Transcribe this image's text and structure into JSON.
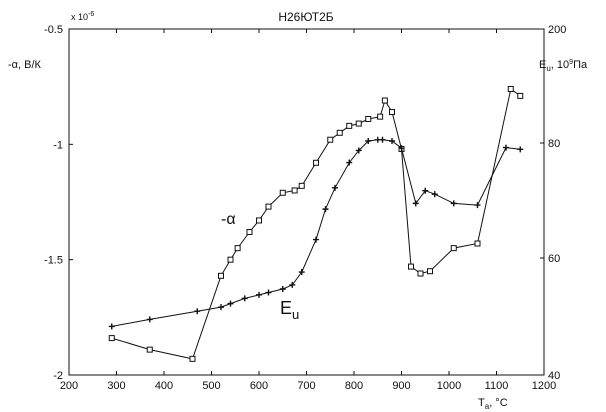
{
  "chart_data": {
    "type": "line",
    "title": "Н26ЮТ2Б",
    "x_axis": {
      "label_main": "T",
      "label_sub": "a",
      "label_unit": ", °C",
      "range": [
        200,
        1200
      ],
      "ticks": [
        200,
        300,
        400,
        500,
        600,
        700,
        800,
        900,
        1000,
        1100,
        1200
      ]
    },
    "y_left": {
      "label": "-α, В/К",
      "multiplier": "x 10",
      "multiplier_exp": "-6",
      "range": [
        -2,
        -0.5
      ],
      "ticks": [
        -2,
        -1.5,
        -1,
        -0.5
      ],
      "tick_labels": [
        "-2",
        "-1.5",
        "-1",
        "-0.5"
      ]
    },
    "y_right": {
      "label_main": "E",
      "label_sub": "u",
      "label_unit": ", 10",
      "label_exp": "9",
      "label_tail": "Па",
      "range": [
        40,
        200
      ],
      "ticks": [
        40,
        60,
        80,
        200
      ],
      "tick_labels": [
        "40",
        "60",
        "80",
        "200"
      ]
    },
    "grid": false,
    "series": [
      {
        "name": "-α",
        "axis": "left",
        "marker": "square",
        "x": [
          290,
          370,
          460,
          520,
          540,
          555,
          580,
          600,
          620,
          650,
          675,
          690,
          720,
          750,
          770,
          790,
          810,
          830,
          855,
          865,
          880,
          900,
          920,
          940,
          960,
          1010,
          1060,
          1130,
          1150
        ],
        "y": [
          -1.84,
          -1.89,
          -1.93,
          -1.57,
          -1.5,
          -1.45,
          -1.38,
          -1.33,
          -1.27,
          -1.21,
          -1.2,
          -1.18,
          -1.08,
          -0.98,
          -0.95,
          -0.92,
          -0.91,
          -0.89,
          -0.88,
          -0.81,
          -0.86,
          -1.02,
          -1.53,
          -1.56,
          -1.55,
          -1.45,
          -1.43,
          -0.76,
          -0.79
        ]
      },
      {
        "name": "E",
        "axis": "right",
        "marker": "plus",
        "x": [
          290,
          370,
          470,
          520,
          540,
          570,
          600,
          620,
          650,
          670,
          690,
          720,
          740,
          760,
          790,
          810,
          830,
          850,
          860,
          880,
          900,
          930,
          950,
          970,
          1010,
          1060,
          1120,
          1150
        ],
        "y": [
          48.3,
          49.5,
          50.9,
          51.6,
          52.2,
          53.1,
          53.7,
          54.1,
          54.7,
          55.4,
          57.6,
          63.2,
          68.5,
          72.2,
          76.6,
          78.7,
          82.1,
          83.4,
          83.4,
          82.1,
          79.1,
          69.5,
          71.7,
          71.1,
          69.5,
          69.2,
          79.2,
          78.9
        ]
      }
    ],
    "annotations": {
      "alpha_text": "-α",
      "e_main": "E",
      "e_sub": "u"
    }
  }
}
